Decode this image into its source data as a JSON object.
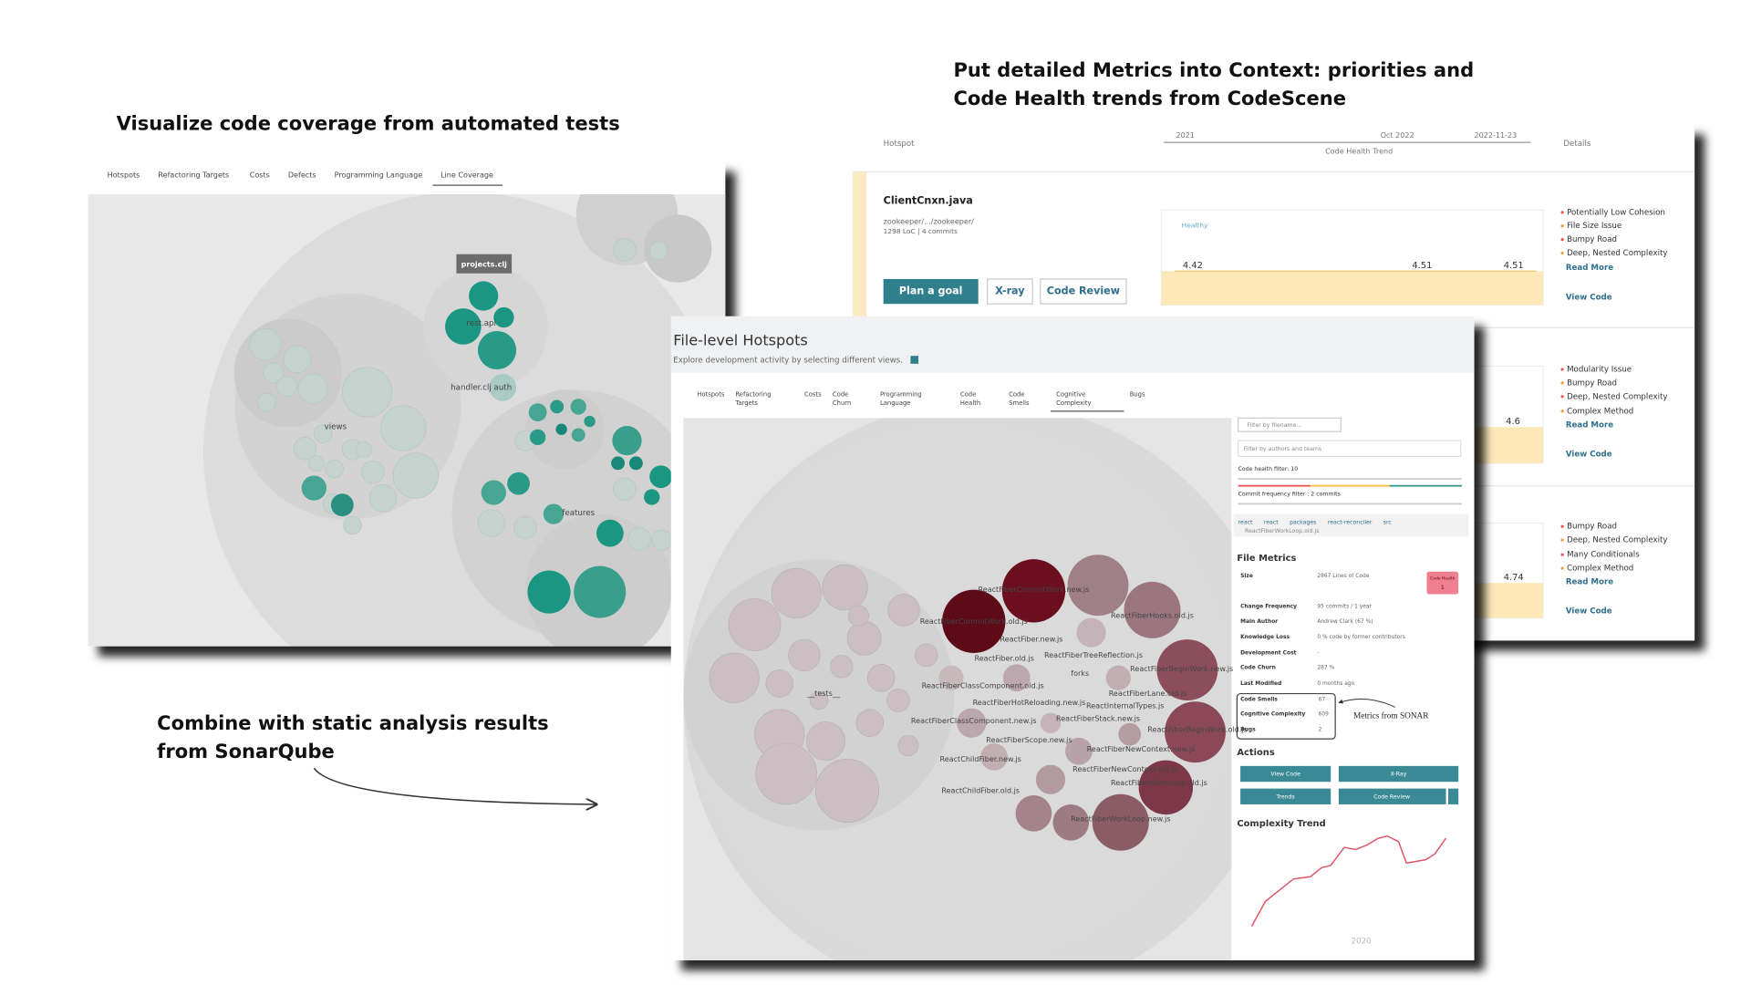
{
  "captions": {
    "coverage": "Visualize code coverage from automated tests",
    "metrics": [
      "Put detailed Metrics into Context: priorities and",
      "Code Health trends from CodeScene"
    ],
    "sonar": [
      "Combine with static analysis results",
      "from SonarQube"
    ]
  },
  "coverage_view": {
    "tabs": [
      "Hotspots",
      "Refactoring Targets",
      "Costs",
      "Defects",
      "Programming Language",
      "Line Coverage"
    ],
    "tooltip": "projects.clj",
    "labels": [
      "rest.api",
      "handler.clj auth",
      "views",
      "features"
    ]
  },
  "health_view": {
    "header": {
      "hotspot": "Hotspot",
      "trend": "Code Health Trend",
      "details": "Details",
      "timeline": [
        "2021",
        "Oct 2022",
        "2022-11-23"
      ]
    },
    "rows": [
      {
        "file": "ClientCnxn.java",
        "path": "zookeeper/.../zookeeper/",
        "stats": "1298 LoC | 4 commits",
        "zone": "Healthy",
        "scores": [
          4.42,
          4.51,
          4.51
        ],
        "buttons": [
          "Plan a goal",
          "X-ray",
          "Code Review"
        ],
        "details": [
          "Potentially Low Cohesion",
          "File Size Issue",
          "Bumpy Road",
          "Deep, Nested Complexity"
        ],
        "read_more": "Read More",
        "view_code": "View Code"
      },
      {
        "scores": [
          4.6
        ],
        "details": [
          "Modularity Issue",
          "Bumpy Road",
          "Deep, Nested Complexity",
          "Complex Method"
        ],
        "read_more": "Read More",
        "view_code": "View Code"
      },
      {
        "scores": [
          4.74
        ],
        "details": [
          "Bumpy Road",
          "Deep, Nested Complexity",
          "Many Conditionals",
          "Complex Method"
        ],
        "read_more": "Read More",
        "view_code": "View Code"
      }
    ]
  },
  "hotspots_view": {
    "title": "File-level Hotspots",
    "subtitle": "Explore development activity by selecting different views.",
    "tabs": [
      [
        "Hotspots"
      ],
      [
        "Refactoring",
        "Targets"
      ],
      [
        "Costs"
      ],
      [
        "Code",
        "Churn"
      ],
      [
        "Programming",
        "Language"
      ],
      [
        "Code",
        "Health"
      ],
      [
        "Code",
        "Smells"
      ],
      [
        "Cognitive",
        "Complexity"
      ],
      [
        "Bugs"
      ]
    ],
    "bubble_labels": [
      "ReactFiberCommitWork.new.js",
      "ReactFiberCommitWork.old.js",
      "ReactFiber.new.js",
      "ReactFiber.old.js",
      "ReactFiberTreeReflection.js",
      "ReactFiberHooks.old.js",
      "forks",
      "ReactFiberBeginWork.new.js",
      "ReactFiberClassComponent.old.js",
      "ReactFiberLane.old.js",
      "ReactFiberHotReloading.new.js",
      "ReactInternalTypes.js",
      "ReactFiberClassComponent.new.js",
      "ReactFiberStack.new.js",
      "ReactFiberBeginWork.old.js",
      "ReactFiberScope.new.js",
      "ReactFiberNewContext.new.js",
      "ReactChildFiber.new.js",
      "ReactFiberNewContext.old.js",
      "ReactFiberWorkLoop.old.js",
      "ReactChildFiber.old.js",
      "ReactFiberWorkLoop.new.js",
      "__tests__"
    ],
    "sidebar": {
      "filter_file": "Filter by filename...",
      "filter_authors": "Filter by authors and teams",
      "health_filter": "Code health filter: 10",
      "commit_filter": "Commit frequency filter : 2 commits",
      "breadcrumb": [
        "react",
        "react",
        "packages",
        "react-reconciler",
        "src"
      ],
      "file": "ReactFiberWorkLoop.old.js",
      "metrics_title": "File Metrics",
      "metrics": [
        [
          "Size",
          "2867 Lines of Code"
        ],
        [
          "Change Frequency",
          "95 commits / 1 year"
        ],
        [
          "Main Author",
          "Andrew Clark (67 %)"
        ],
        [
          "Knowledge Loss",
          "0 % code by former contributors"
        ],
        [
          "Development Cost",
          "-"
        ],
        [
          "Code Churn",
          "287 %"
        ],
        [
          "Last Modified",
          "0 months ago"
        ]
      ],
      "badge": {
        "label": "Code Health",
        "value": 1
      },
      "sonar": [
        [
          "Code Smells",
          67
        ],
        [
          "Cognitive Complexity",
          609
        ],
        [
          "Bugs",
          2
        ]
      ],
      "annotation": "Metrics from SONAR",
      "actions_title": "Actions",
      "actions": [
        "View Code",
        "X-Ray",
        "Trends",
        "Code Review"
      ],
      "trend_title": "Complexity Trend",
      "trend_axis": "2020"
    }
  }
}
